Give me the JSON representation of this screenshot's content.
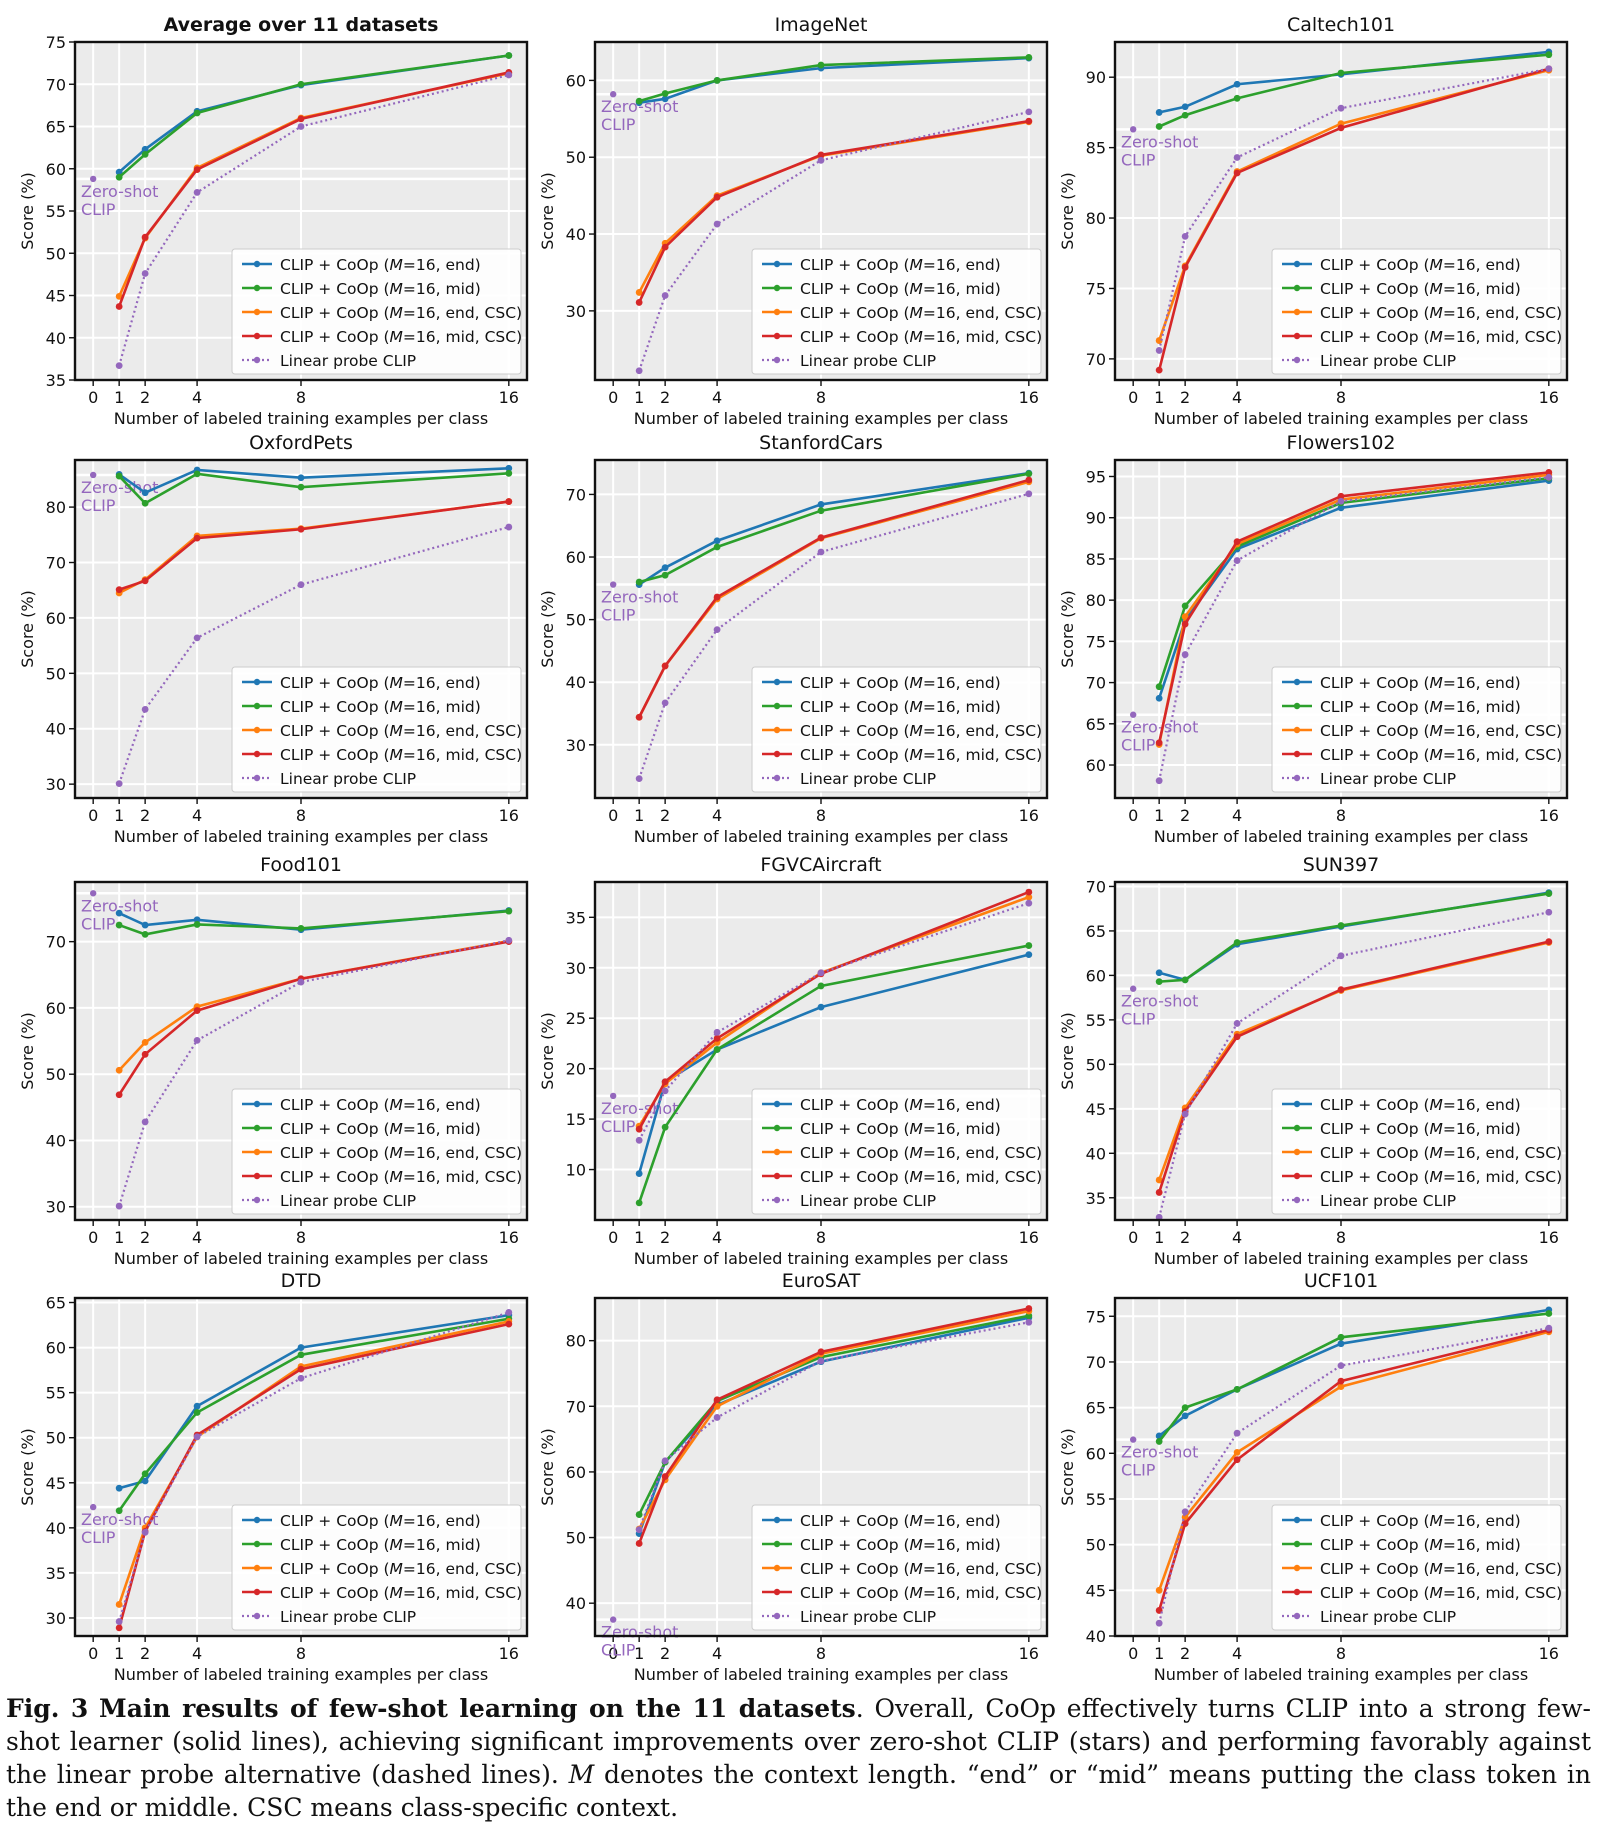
{
  "figure": {
    "caption_label": "Fig. 3",
    "caption_title": "Main results of few-shot learning on the 11 datasets",
    "caption_text_1": ". Overall, CoOp effectively turns CLIP into a strong few-shot learner (solid lines), achieving significant improvements over zero-shot CLIP (stars) and performing favorably against the linear probe alternative (dashed lines). ",
    "caption_M": "M",
    "caption_text_2": " denotes the context length. “end” or “mid” means putting the class token in the end or middle. CSC means class-specific context."
  },
  "common": {
    "x_ticks": [
      0,
      1,
      2,
      4,
      8,
      16
    ],
    "x_label": "Number of labeled training examples per class",
    "y_label": "Score (%)",
    "zero_shot_label": [
      "Zero-shot",
      "CLIP"
    ],
    "legend_placement": "lower-right",
    "grid": true,
    "legend": [
      {
        "pre": "CLIP + CoOp (",
        "m": "M",
        "post": "=16, end)"
      },
      {
        "pre": "CLIP + CoOp (",
        "m": "M",
        "post": "=16, mid)"
      },
      {
        "pre": "CLIP + CoOp (",
        "m": "M",
        "post": "=16, end, CSC)"
      },
      {
        "pre": "CLIP + CoOp (",
        "m": "M",
        "post": "=16, mid, CSC)"
      },
      {
        "pre": "Linear probe CLIP",
        "m": "",
        "post": ""
      }
    ],
    "colors": [
      "#1f77b4",
      "#2ca02c",
      "#ff7f0e",
      "#d62728",
      "#9467bd"
    ]
  },
  "chart_data": [
    {
      "type": "line",
      "title": "Average over 11 datasets",
      "title_bold": true,
      "x": [
        1,
        2,
        4,
        8,
        16
      ],
      "ylim": [
        35,
        75
      ],
      "yticks": [
        35,
        40,
        45,
        50,
        55,
        60,
        65,
        70,
        75
      ],
      "zero_shot": 58.8,
      "series": [
        {
          "name": "CLIP + CoOp (M=16, end)",
          "values": [
            59.6,
            62.3,
            66.8,
            69.9,
            73.4
          ]
        },
        {
          "name": "CLIP + CoOp (M=16, mid)",
          "values": [
            59.0,
            61.7,
            66.6,
            70.0,
            73.4
          ]
        },
        {
          "name": "CLIP + CoOp (M=16, end, CSC)",
          "values": [
            44.9,
            51.8,
            60.1,
            66.0,
            71.3
          ]
        },
        {
          "name": "CLIP + CoOp (M=16, mid, CSC)",
          "values": [
            43.7,
            51.9,
            59.9,
            65.9,
            71.4
          ]
        },
        {
          "name": "Linear probe CLIP",
          "values": [
            36.7,
            47.6,
            57.2,
            65.0,
            71.1
          ]
        }
      ]
    },
    {
      "type": "line",
      "title": "ImageNet",
      "title_bold": false,
      "x": [
        1,
        2,
        4,
        8,
        16
      ],
      "ylim": [
        21,
        65
      ],
      "yticks": [
        30,
        40,
        50,
        60
      ],
      "zero_shot": 58.2,
      "series": [
        {
          "name": "CLIP + CoOp (M=16, end)",
          "values": [
            57.1,
            57.6,
            60.0,
            61.6,
            62.9
          ]
        },
        {
          "name": "CLIP + CoOp (M=16, mid)",
          "values": [
            57.3,
            58.3,
            60.0,
            62.0,
            63.0
          ]
        },
        {
          "name": "CLIP + CoOp (M=16, end, CSC)",
          "values": [
            32.4,
            38.8,
            45.0,
            50.2,
            54.6
          ]
        },
        {
          "name": "CLIP + CoOp (M=16, mid, CSC)",
          "values": [
            31.1,
            38.3,
            44.8,
            50.3,
            54.7
          ]
        },
        {
          "name": "Linear probe CLIP",
          "values": [
            22.2,
            32.0,
            41.3,
            49.6,
            55.9
          ]
        }
      ]
    },
    {
      "type": "line",
      "title": "Caltech101",
      "title_bold": false,
      "x": [
        1,
        2,
        4,
        8,
        16
      ],
      "ylim": [
        68.5,
        92.5
      ],
      "yticks": [
        70,
        75,
        80,
        85,
        90
      ],
      "zero_shot": 86.3,
      "series": [
        {
          "name": "CLIP + CoOp (M=16, end)",
          "values": [
            87.5,
            87.9,
            89.5,
            90.2,
            91.8
          ]
        },
        {
          "name": "CLIP + CoOp (M=16, mid)",
          "values": [
            86.5,
            87.3,
            88.5,
            90.3,
            91.6
          ]
        },
        {
          "name": "CLIP + CoOp (M=16, end, CSC)",
          "values": [
            71.3,
            76.6,
            83.3,
            86.7,
            90.5
          ]
        },
        {
          "name": "CLIP + CoOp (M=16, mid, CSC)",
          "values": [
            69.2,
            76.5,
            83.2,
            86.4,
            90.6
          ]
        },
        {
          "name": "Linear probe CLIP",
          "values": [
            70.6,
            78.7,
            84.3,
            87.8,
            90.6
          ]
        }
      ]
    },
    {
      "type": "line",
      "title": "OxfordPets",
      "title_bold": false,
      "x": [
        1,
        2,
        4,
        8,
        16
      ],
      "ylim": [
        27.5,
        88.5
      ],
      "yticks": [
        30,
        40,
        50,
        60,
        70,
        80
      ],
      "zero_shot": 85.8,
      "series": [
        {
          "name": "CLIP + CoOp (M=16, end)",
          "values": [
            85.9,
            82.6,
            86.7,
            85.3,
            87.0
          ]
        },
        {
          "name": "CLIP + CoOp (M=16, mid)",
          "values": [
            85.6,
            80.7,
            86.0,
            83.6,
            86.1
          ]
        },
        {
          "name": "CLIP + CoOp (M=16, end, CSC)",
          "values": [
            64.5,
            66.9,
            74.8,
            76.1,
            81.0
          ]
        },
        {
          "name": "CLIP + CoOp (M=16, mid, CSC)",
          "values": [
            65.1,
            66.7,
            74.4,
            76.0,
            81.0
          ]
        },
        {
          "name": "Linear probe CLIP",
          "values": [
            30.1,
            43.5,
            56.4,
            66.0,
            76.4
          ]
        }
      ]
    },
    {
      "type": "line",
      "title": "StanfordCars",
      "title_bold": false,
      "x": [
        1,
        2,
        4,
        8,
        16
      ],
      "ylim": [
        21.5,
        75.5
      ],
      "yticks": [
        30,
        40,
        50,
        60,
        70
      ],
      "zero_shot": 55.6,
      "series": [
        {
          "name": "CLIP + CoOp (M=16, end)",
          "values": [
            55.6,
            58.3,
            62.6,
            68.4,
            73.4
          ]
        },
        {
          "name": "CLIP + CoOp (M=16, mid)",
          "values": [
            56.0,
            57.1,
            61.6,
            67.4,
            73.3
          ]
        },
        {
          "name": "CLIP + CoOp (M=16, end, CSC)",
          "values": [
            34.4,
            42.6,
            53.3,
            63.0,
            72.0
          ]
        },
        {
          "name": "CLIP + CoOp (M=16, mid, CSC)",
          "values": [
            34.4,
            42.6,
            53.6,
            63.1,
            72.3
          ]
        },
        {
          "name": "Linear probe CLIP",
          "values": [
            24.6,
            36.7,
            48.4,
            60.8,
            70.1
          ]
        }
      ]
    },
    {
      "type": "line",
      "title": "Flowers102",
      "title_bold": false,
      "x": [
        1,
        2,
        4,
        8,
        16
      ],
      "ylim": [
        56,
        97
      ],
      "yticks": [
        60,
        65,
        70,
        75,
        80,
        85,
        90,
        95
      ],
      "zero_shot": 66.1,
      "series": [
        {
          "name": "CLIP + CoOp (M=16, end)",
          "values": [
            68.1,
            77.5,
            86.2,
            91.2,
            94.5
          ]
        },
        {
          "name": "CLIP + CoOp (M=16, mid)",
          "values": [
            69.5,
            79.3,
            86.5,
            91.8,
            94.8
          ]
        },
        {
          "name": "CLIP + CoOp (M=16, end, CSC)",
          "values": [
            62.5,
            78.0,
            86.8,
            92.2,
            95.2
          ]
        },
        {
          "name": "CLIP + CoOp (M=16, mid, CSC)",
          "values": [
            62.7,
            77.1,
            87.1,
            92.6,
            95.5
          ]
        },
        {
          "name": "Linear probe CLIP",
          "values": [
            58.1,
            73.4,
            84.8,
            92.0,
            94.9
          ]
        }
      ]
    },
    {
      "type": "line",
      "title": "Food101",
      "title_bold": false,
      "x": [
        1,
        2,
        4,
        8,
        16
      ],
      "ylim": [
        28,
        79
      ],
      "yticks": [
        30,
        40,
        50,
        60,
        70
      ],
      "zero_shot": 77.3,
      "series": [
        {
          "name": "CLIP + CoOp (M=16, end)",
          "values": [
            74.3,
            72.5,
            73.3,
            71.8,
            74.7
          ]
        },
        {
          "name": "CLIP + CoOp (M=16, mid)",
          "values": [
            72.5,
            71.1,
            72.6,
            72.0,
            74.6
          ]
        },
        {
          "name": "CLIP + CoOp (M=16, end, CSC)",
          "values": [
            50.6,
            54.8,
            60.2,
            64.4,
            70.1
          ]
        },
        {
          "name": "CLIP + CoOp (M=16, mid, CSC)",
          "values": [
            46.9,
            53.0,
            59.6,
            64.4,
            70.0
          ]
        },
        {
          "name": "Linear probe CLIP",
          "values": [
            30.1,
            42.8,
            55.1,
            63.9,
            70.2
          ]
        }
      ]
    },
    {
      "type": "line",
      "title": "FGVCAircraft",
      "title_bold": false,
      "x": [
        1,
        2,
        4,
        8,
        16
      ],
      "ylim": [
        5,
        38.5
      ],
      "yticks": [
        10,
        15,
        20,
        25,
        30,
        35
      ],
      "zero_shot": 17.3,
      "series": [
        {
          "name": "CLIP + CoOp (M=16, end)",
          "values": [
            9.6,
            18.7,
            21.9,
            26.1,
            31.3
          ]
        },
        {
          "name": "CLIP + CoOp (M=16, mid)",
          "values": [
            6.7,
            14.2,
            21.9,
            28.2,
            32.2
          ]
        },
        {
          "name": "CLIP + CoOp (M=16, end, CSC)",
          "values": [
            14.3,
            18.5,
            22.6,
            29.5,
            37.0
          ]
        },
        {
          "name": "CLIP + CoOp (M=16, mid, CSC)",
          "values": [
            14.0,
            18.7,
            23.0,
            29.4,
            37.5
          ]
        },
        {
          "name": "Linear probe CLIP",
          "values": [
            12.9,
            17.8,
            23.6,
            29.5,
            36.4
          ]
        }
      ]
    },
    {
      "type": "line",
      "title": "SUN397",
      "title_bold": false,
      "x": [
        1,
        2,
        4,
        8,
        16
      ],
      "ylim": [
        32.5,
        70.5
      ],
      "yticks": [
        35,
        40,
        45,
        50,
        55,
        60,
        65,
        70
      ],
      "zero_shot": 58.5,
      "series": [
        {
          "name": "CLIP + CoOp (M=16, end)",
          "values": [
            60.3,
            59.5,
            63.5,
            65.5,
            69.3
          ]
        },
        {
          "name": "CLIP + CoOp (M=16, mid)",
          "values": [
            59.3,
            59.5,
            63.7,
            65.6,
            69.2
          ]
        },
        {
          "name": "CLIP + CoOp (M=16, end, CSC)",
          "values": [
            37.0,
            45.1,
            53.4,
            58.3,
            63.7
          ]
        },
        {
          "name": "CLIP + CoOp (M=16, mid, CSC)",
          "values": [
            35.6,
            44.7,
            53.1,
            58.4,
            63.8
          ]
        },
        {
          "name": "Linear probe CLIP",
          "values": [
            32.8,
            44.4,
            54.6,
            62.2,
            67.1
          ]
        }
      ]
    },
    {
      "type": "line",
      "title": "DTD",
      "title_bold": false,
      "x": [
        1,
        2,
        4,
        8,
        16
      ],
      "ylim": [
        28,
        65.5
      ],
      "yticks": [
        30,
        35,
        40,
        45,
        50,
        55,
        60,
        65
      ],
      "zero_shot": 42.3,
      "series": [
        {
          "name": "CLIP + CoOp (M=16, end)",
          "values": [
            44.4,
            45.2,
            53.5,
            60.0,
            63.6
          ]
        },
        {
          "name": "CLIP + CoOp (M=16, mid)",
          "values": [
            41.9,
            46.0,
            52.8,
            59.2,
            63.2
          ]
        },
        {
          "name": "CLIP + CoOp (M=16, end, CSC)",
          "values": [
            31.5,
            40.0,
            50.1,
            57.9,
            62.9
          ]
        },
        {
          "name": "CLIP + CoOp (M=16, mid, CSC)",
          "values": [
            28.9,
            39.6,
            50.3,
            57.6,
            62.6
          ]
        },
        {
          "name": "Linear probe CLIP",
          "values": [
            29.6,
            39.5,
            50.1,
            56.6,
            63.9
          ]
        }
      ]
    },
    {
      "type": "line",
      "title": "EuroSAT",
      "title_bold": false,
      "x": [
        1,
        2,
        4,
        8,
        16
      ],
      "ylim": [
        35,
        86.5
      ],
      "yticks": [
        40,
        50,
        60,
        70,
        80
      ],
      "zero_shot": 37.5,
      "series": [
        {
          "name": "CLIP + CoOp (M=16, end)",
          "values": [
            50.6,
            61.5,
            70.2,
            76.8,
            83.5
          ]
        },
        {
          "name": "CLIP + CoOp (M=16, mid)",
          "values": [
            53.5,
            61.5,
            70.8,
            77.5,
            83.8
          ]
        },
        {
          "name": "CLIP + CoOp (M=16, end, CSC)",
          "values": [
            51.3,
            58.8,
            70.0,
            78.0,
            84.5
          ]
        },
        {
          "name": "CLIP + CoOp (M=16, mid, CSC)",
          "values": [
            49.1,
            59.3,
            71.0,
            78.3,
            84.9
          ]
        },
        {
          "name": "Linear probe CLIP",
          "values": [
            51.2,
            61.7,
            68.3,
            76.9,
            82.8
          ]
        }
      ]
    },
    {
      "type": "line",
      "title": "UCF101",
      "title_bold": false,
      "x": [
        1,
        2,
        4,
        8,
        16
      ],
      "ylim": [
        40,
        77
      ],
      "yticks": [
        40,
        45,
        50,
        55,
        60,
        65,
        70,
        75
      ],
      "zero_shot": 61.5,
      "series": [
        {
          "name": "CLIP + CoOp (M=16, end)",
          "values": [
            61.9,
            64.1,
            67.0,
            72.0,
            75.7
          ]
        },
        {
          "name": "CLIP + CoOp (M=16, mid)",
          "values": [
            61.3,
            65.0,
            67.0,
            72.7,
            75.3
          ]
        },
        {
          "name": "CLIP + CoOp (M=16, end, CSC)",
          "values": [
            45.0,
            53.0,
            60.1,
            67.3,
            73.3
          ]
        },
        {
          "name": "CLIP + CoOp (M=16, mid, CSC)",
          "values": [
            42.8,
            52.3,
            59.3,
            67.9,
            73.5
          ]
        },
        {
          "name": "Linear probe CLIP",
          "values": [
            41.4,
            53.6,
            62.2,
            69.6,
            73.7
          ]
        }
      ]
    }
  ]
}
